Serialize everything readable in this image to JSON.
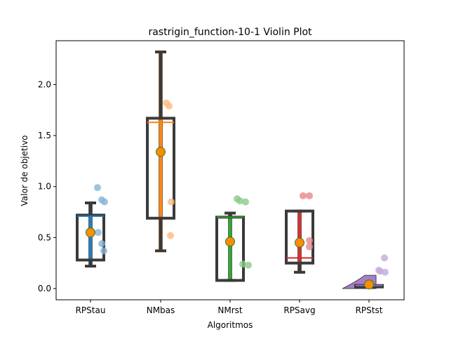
{
  "chart_data": {
    "type": "violin",
    "title": "rastrigin_function-10-1 Violin Plot",
    "xlabel": "Algoritmos",
    "ylabel": "Valor de objetivo",
    "ylim": [
      -0.11,
      2.43
    ],
    "yticks": [
      0.0,
      0.5,
      1.0,
      1.5,
      2.0
    ],
    "ytick_labels": [
      "0.0",
      "0.5",
      "1.0",
      "1.5",
      "2.0"
    ],
    "categories": [
      "RPStau",
      "NMbas",
      "NMrst",
      "RPSavg",
      "RPStst"
    ],
    "grid": false,
    "series": [
      {
        "name": "RPStau",
        "color": "#1f77b4",
        "points": [
          0.99,
          0.87,
          0.85,
          0.44,
          0.37,
          0.55
        ],
        "box": {
          "whisker_low": 0.22,
          "q1": 0.28,
          "median": 0.71,
          "q3": 0.72,
          "whisker_high": 0.84
        },
        "mean": 0.55,
        "violin_range": [
          0.23,
          0.85
        ]
      },
      {
        "name": "NMbas",
        "color": "#ff7f0e",
        "points": [
          1.82,
          1.79,
          0.85,
          0.52
        ],
        "box": {
          "whisker_low": 0.37,
          "q1": 0.69,
          "median": 1.63,
          "q3": 1.67,
          "whisker_high": 2.32
        },
        "mean": 1.34,
        "violin_range": [
          0.37,
          2.32
        ]
      },
      {
        "name": "NMrst",
        "color": "#2ca02c",
        "points": [
          0.88,
          0.86,
          0.85,
          0.24,
          0.23
        ],
        "box": {
          "whisker_low": 0.08,
          "q1": 0.08,
          "median": 0.7,
          "q3": 0.7,
          "whisker_high": 0.74
        },
        "mean": 0.46,
        "violin_range": [
          0.08,
          0.74
        ]
      },
      {
        "name": "RPSavg",
        "color": "#d62728",
        "points": [
          0.91,
          0.91,
          0.47,
          0.41
        ],
        "box": {
          "whisker_low": 0.16,
          "q1": 0.25,
          "median": 0.3,
          "q3": 0.76,
          "whisker_high": 0.76
        },
        "mean": 0.45,
        "violin_range": [
          0.16,
          0.76
        ]
      },
      {
        "name": "RPStst",
        "color": "#9467bd",
        "points": [
          0.3,
          0.18,
          0.17,
          0.16
        ],
        "box": {
          "whisker_low": 0.02,
          "q1": 0.02,
          "median": 0.03,
          "q3": 0.03,
          "whisker_high": 0.03
        },
        "mean": 0.04,
        "violin_range": [
          0.0,
          0.13
        ]
      }
    ]
  }
}
